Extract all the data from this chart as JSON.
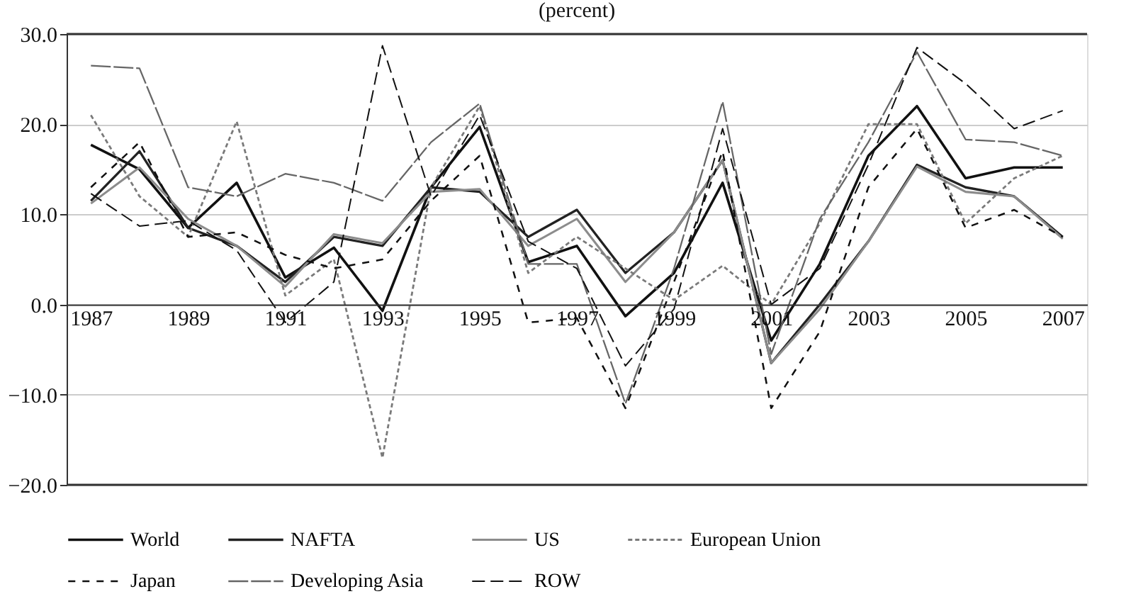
{
  "chart_data": {
    "type": "line",
    "title": "(percent)",
    "categories": [
      "1987",
      null,
      "1989",
      null,
      "1991",
      null,
      "1993",
      null,
      "1995",
      null,
      "1997",
      null,
      "1999",
      null,
      "2001",
      null,
      "2003",
      null,
      "2005",
      null,
      "2007"
    ],
    "series": [
      {
        "name": "World",
        "color": "#111111",
        "line_style": "solid",
        "values": [
          17.7,
          15.0,
          8.5,
          13.5,
          3.0,
          6.3,
          -0.7,
          13.0,
          19.7,
          4.7,
          6.5,
          -1.3,
          3.5,
          13.5,
          -4.0,
          4.5,
          16.5,
          22.0,
          14.0,
          15.2,
          15.2
        ]
      },
      {
        "name": "NAFTA",
        "color": "#222222",
        "line_style": "solid",
        "values": [
          11.5,
          17.0,
          8.5,
          6.5,
          2.5,
          7.5,
          6.5,
          13.0,
          12.5,
          7.5,
          10.5,
          3.5,
          8.0,
          16.0,
          -6.5,
          0.0,
          7.0,
          15.5,
          13.0,
          12.0,
          7.5
        ]
      },
      {
        "name": "US",
        "color": "#8c8c8c",
        "line_style": "solid",
        "values": [
          11.2,
          15.2,
          9.5,
          6.5,
          2.0,
          7.8,
          6.8,
          12.5,
          12.8,
          6.5,
          9.5,
          2.5,
          8.0,
          16.0,
          -6.5,
          -0.5,
          7.0,
          15.3,
          12.5,
          12.0,
          7.3
        ]
      },
      {
        "name": "European Union",
        "color": "#7a7a7a",
        "line_style": "dotted",
        "values": [
          21.0,
          12.0,
          7.5,
          20.3,
          1.0,
          5.0,
          -17.0,
          13.0,
          22.0,
          3.5,
          7.5,
          4.0,
          0.5,
          4.3,
          0.0,
          9.0,
          20.0,
          20.0,
          9.0,
          14.0,
          16.5
        ]
      },
      {
        "name": "Japan",
        "color": "#111111",
        "line_style": "dotted",
        "values": [
          13.0,
          18.0,
          7.5,
          8.0,
          5.5,
          4.0,
          5.0,
          11.5,
          16.5,
          -2.0,
          -1.5,
          -11.5,
          2.5,
          17.0,
          -11.5,
          -3.0,
          13.0,
          19.5,
          8.5,
          10.5,
          7.5
        ]
      },
      {
        "name": "Developing Asia",
        "color": "#666666",
        "line_style": "dashed",
        "values": [
          26.5,
          26.2,
          13.0,
          12.0,
          14.5,
          13.5,
          11.5,
          18.0,
          22.3,
          4.5,
          4.5,
          -11.0,
          4.0,
          22.5,
          -5.5,
          9.5,
          18.0,
          28.0,
          18.3,
          18.0,
          16.5
        ]
      },
      {
        "name": "ROW",
        "color": "#111111",
        "line_style": "dashed",
        "values": [
          12.3,
          8.7,
          9.3,
          6.0,
          -2.0,
          2.5,
          28.7,
          12.0,
          21.0,
          7.0,
          4.0,
          -6.8,
          -0.5,
          19.5,
          0.0,
          4.0,
          15.5,
          28.5,
          24.5,
          19.5,
          21.5
        ]
      }
    ],
    "ylim": [
      -20,
      30
    ],
    "yticks": [
      {
        "value": -20,
        "label": "−20.0"
      },
      {
        "value": -10,
        "label": "−10.0"
      },
      {
        "value": 0,
        "label": "0.0"
      },
      {
        "value": 10,
        "label": "10.0"
      },
      {
        "value": 20,
        "label": "20.0"
      },
      {
        "value": 30,
        "label": "30.0"
      }
    ],
    "grid": "y",
    "legend": "bottom",
    "marker": "none"
  }
}
